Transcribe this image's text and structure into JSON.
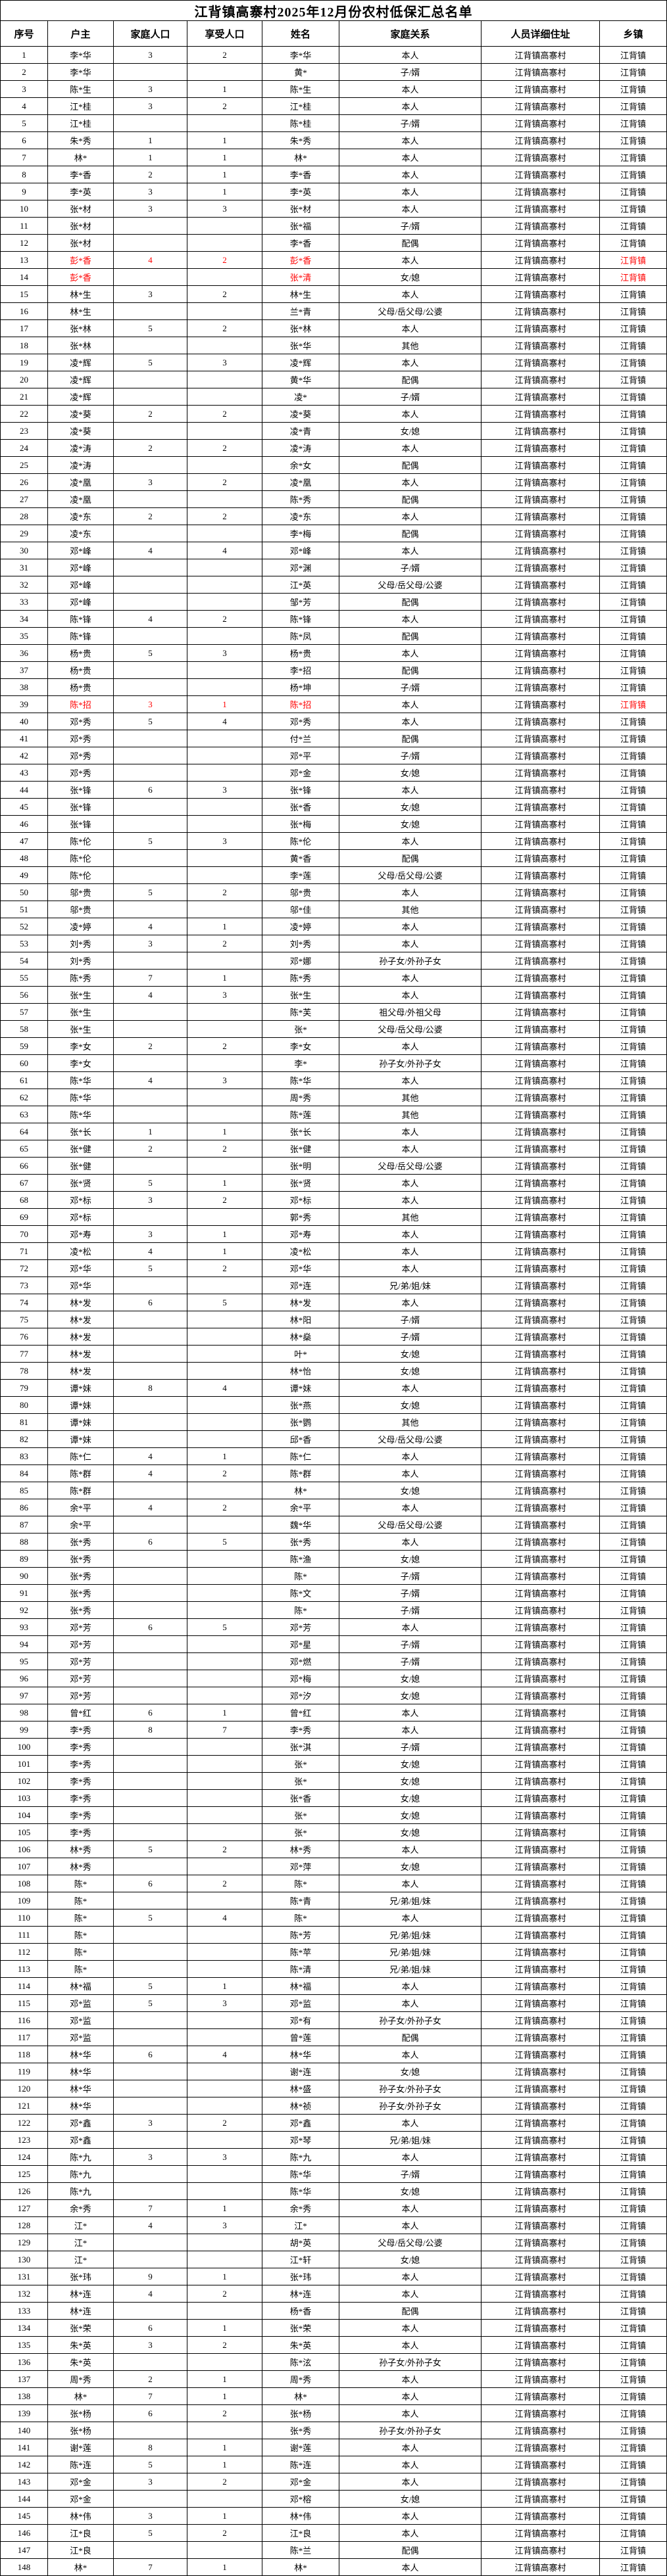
{
  "title": "江背镇高寨村2025年12月份农村低保汇总名单",
  "columns": [
    "序号",
    "户主",
    "家庭人口",
    "享受人口",
    "姓名",
    "家庭关系",
    "人员详细住址",
    "乡镇"
  ],
  "column_keys": [
    "index",
    "householder",
    "family-size",
    "beneficiary-count",
    "name",
    "relation",
    "address",
    "township"
  ],
  "colors": {
    "text": "#000000",
    "border": "#000000",
    "background": "#FFFFFF",
    "highlight": "#FF0000"
  },
  "highlight": {
    "rows": [
      13,
      14,
      39
    ],
    "columns": [
      1,
      2,
      3,
      4,
      7
    ]
  },
  "rows": [
    [
      "1",
      "李*华",
      "3",
      "2",
      "李*华",
      "本人",
      "江背镇高寨村",
      "江背镇"
    ],
    [
      "2",
      "李*华",
      "",
      "",
      "黄*",
      "子/婿",
      "江背镇高寨村",
      "江背镇"
    ],
    [
      "3",
      "陈*生",
      "3",
      "1",
      "陈*生",
      "本人",
      "江背镇高寨村",
      "江背镇"
    ],
    [
      "4",
      "江*桂",
      "3",
      "2",
      "江*桂",
      "本人",
      "江背镇高寨村",
      "江背镇"
    ],
    [
      "5",
      "江*桂",
      "",
      "",
      "陈*桂",
      "子/婿",
      "江背镇高寨村",
      "江背镇"
    ],
    [
      "6",
      "朱*秀",
      "1",
      "1",
      "朱*秀",
      "本人",
      "江背镇高寨村",
      "江背镇"
    ],
    [
      "7",
      "林*",
      "1",
      "1",
      "林*",
      "本人",
      "江背镇高寨村",
      "江背镇"
    ],
    [
      "8",
      "李*香",
      "2",
      "1",
      "李*香",
      "本人",
      "江背镇高寨村",
      "江背镇"
    ],
    [
      "9",
      "李*英",
      "3",
      "1",
      "李*英",
      "本人",
      "江背镇高寨村",
      "江背镇"
    ],
    [
      "10",
      "张*材",
      "3",
      "3",
      "张*材",
      "本人",
      "江背镇高寨村",
      "江背镇"
    ],
    [
      "11",
      "张*材",
      "",
      "",
      "张*福",
      "子/婿",
      "江背镇高寨村",
      "江背镇"
    ],
    [
      "12",
      "张*材",
      "",
      "",
      "李*香",
      "配偶",
      "江背镇高寨村",
      "江背镇"
    ],
    [
      "13",
      "彭*香",
      "4",
      "2",
      "彭*香",
      "本人",
      "江背镇高寨村",
      "江背镇"
    ],
    [
      "14",
      "彭*香",
      "",
      "",
      "张*清",
      "女/媳",
      "江背镇高寨村",
      "江背镇"
    ],
    [
      "15",
      "林*生",
      "3",
      "2",
      "林*生",
      "本人",
      "江背镇高寨村",
      "江背镇"
    ],
    [
      "16",
      "林*生",
      "",
      "",
      "兰*青",
      "父母/岳父母/公婆",
      "江背镇高寨村",
      "江背镇"
    ],
    [
      "17",
      "张*林",
      "5",
      "2",
      "张*林",
      "本人",
      "江背镇高寨村",
      "江背镇"
    ],
    [
      "18",
      "张*林",
      "",
      "",
      "张*华",
      "其他",
      "江背镇高寨村",
      "江背镇"
    ],
    [
      "19",
      "凌*辉",
      "5",
      "3",
      "凌*辉",
      "本人",
      "江背镇高寨村",
      "江背镇"
    ],
    [
      "20",
      "凌*辉",
      "",
      "",
      "黄*华",
      "配偶",
      "江背镇高寨村",
      "江背镇"
    ],
    [
      "21",
      "凌*辉",
      "",
      "",
      "凌*",
      "子/婿",
      "江背镇高寨村",
      "江背镇"
    ],
    [
      "22",
      "凌*葵",
      "2",
      "2",
      "凌*葵",
      "本人",
      "江背镇高寨村",
      "江背镇"
    ],
    [
      "23",
      "凌*葵",
      "",
      "",
      "凌*青",
      "女/媳",
      "江背镇高寨村",
      "江背镇"
    ],
    [
      "24",
      "凌*涛",
      "2",
      "2",
      "凌*涛",
      "本人",
      "江背镇高寨村",
      "江背镇"
    ],
    [
      "25",
      "凌*涛",
      "",
      "",
      "余*女",
      "配偶",
      "江背镇高寨村",
      "江背镇"
    ],
    [
      "26",
      "凌*凰",
      "3",
      "2",
      "凌*凰",
      "本人",
      "江背镇高寨村",
      "江背镇"
    ],
    [
      "27",
      "凌*凰",
      "",
      "",
      "陈*秀",
      "配偶",
      "江背镇高寨村",
      "江背镇"
    ],
    [
      "28",
      "凌*东",
      "2",
      "2",
      "凌*东",
      "本人",
      "江背镇高寨村",
      "江背镇"
    ],
    [
      "29",
      "凌*东",
      "",
      "",
      "李*梅",
      "配偶",
      "江背镇高寨村",
      "江背镇"
    ],
    [
      "30",
      "邓*峰",
      "4",
      "4",
      "邓*峰",
      "本人",
      "江背镇高寨村",
      "江背镇"
    ],
    [
      "31",
      "邓*峰",
      "",
      "",
      "邓*渊",
      "子/婿",
      "江背镇高寨村",
      "江背镇"
    ],
    [
      "32",
      "邓*峰",
      "",
      "",
      "江*英",
      "父母/岳父母/公婆",
      "江背镇高寨村",
      "江背镇"
    ],
    [
      "33",
      "邓*峰",
      "",
      "",
      "邹*芳",
      "配偶",
      "江背镇高寨村",
      "江背镇"
    ],
    [
      "34",
      "陈*锋",
      "4",
      "2",
      "陈*锋",
      "本人",
      "江背镇高寨村",
      "江背镇"
    ],
    [
      "35",
      "陈*锋",
      "",
      "",
      "陈*凤",
      "配偶",
      "江背镇高寨村",
      "江背镇"
    ],
    [
      "36",
      "杨*贵",
      "5",
      "3",
      "杨*贵",
      "本人",
      "江背镇高寨村",
      "江背镇"
    ],
    [
      "37",
      "杨*贵",
      "",
      "",
      "李*招",
      "配偶",
      "江背镇高寨村",
      "江背镇"
    ],
    [
      "38",
      "杨*贵",
      "",
      "",
      "杨*坤",
      "子/婿",
      "江背镇高寨村",
      "江背镇"
    ],
    [
      "39",
      "陈*招",
      "3",
      "1",
      "陈*招",
      "本人",
      "江背镇高寨村",
      "江背镇"
    ],
    [
      "40",
      "邓*秀",
      "5",
      "4",
      "邓*秀",
      "本人",
      "江背镇高寨村",
      "江背镇"
    ],
    [
      "41",
      "邓*秀",
      "",
      "",
      "付*兰",
      "配偶",
      "江背镇高寨村",
      "江背镇"
    ],
    [
      "42",
      "邓*秀",
      "",
      "",
      "邓*平",
      "子/婿",
      "江背镇高寨村",
      "江背镇"
    ],
    [
      "43",
      "邓*秀",
      "",
      "",
      "邓*金",
      "女/媳",
      "江背镇高寨村",
      "江背镇"
    ],
    [
      "44",
      "张*锋",
      "6",
      "3",
      "张*锋",
      "本人",
      "江背镇高寨村",
      "江背镇"
    ],
    [
      "45",
      "张*锋",
      "",
      "",
      "张*香",
      "女/媳",
      "江背镇高寨村",
      "江背镇"
    ],
    [
      "46",
      "张*锋",
      "",
      "",
      "张*梅",
      "女/媳",
      "江背镇高寨村",
      "江背镇"
    ],
    [
      "47",
      "陈*伦",
      "5",
      "3",
      "陈*伦",
      "本人",
      "江背镇高寨村",
      "江背镇"
    ],
    [
      "48",
      "陈*伦",
      "",
      "",
      "黄*香",
      "配偶",
      "江背镇高寨村",
      "江背镇"
    ],
    [
      "49",
      "陈*伦",
      "",
      "",
      "李*莲",
      "父母/岳父母/公婆",
      "江背镇高寨村",
      "江背镇"
    ],
    [
      "50",
      "邬*贵",
      "5",
      "2",
      "邬*贵",
      "本人",
      "江背镇高寨村",
      "江背镇"
    ],
    [
      "51",
      "邬*贵",
      "",
      "",
      "邬*佳",
      "其他",
      "江背镇高寨村",
      "江背镇"
    ],
    [
      "52",
      "凌*婷",
      "4",
      "1",
      "凌*婷",
      "本人",
      "江背镇高寨村",
      "江背镇"
    ],
    [
      "53",
      "刘*秀",
      "3",
      "2",
      "刘*秀",
      "本人",
      "江背镇高寨村",
      "江背镇"
    ],
    [
      "54",
      "刘*秀",
      "",
      "",
      "邓*娜",
      "孙子女/外孙子女",
      "江背镇高寨村",
      "江背镇"
    ],
    [
      "55",
      "陈*秀",
      "7",
      "1",
      "陈*秀",
      "本人",
      "江背镇高寨村",
      "江背镇"
    ],
    [
      "56",
      "张*生",
      "4",
      "3",
      "张*生",
      "本人",
      "江背镇高寨村",
      "江背镇"
    ],
    [
      "57",
      "张*生",
      "",
      "",
      "陈*芙",
      "祖父母/外祖父母",
      "江背镇高寨村",
      "江背镇"
    ],
    [
      "58",
      "张*生",
      "",
      "",
      "张*",
      "父母/岳父母/公婆",
      "江背镇高寨村",
      "江背镇"
    ],
    [
      "59",
      "李*女",
      "2",
      "2",
      "李*女",
      "本人",
      "江背镇高寨村",
      "江背镇"
    ],
    [
      "60",
      "李*女",
      "",
      "",
      "李*",
      "孙子女/外孙子女",
      "江背镇高寨村",
      "江背镇"
    ],
    [
      "61",
      "陈*华",
      "4",
      "3",
      "陈*华",
      "本人",
      "江背镇高寨村",
      "江背镇"
    ],
    [
      "62",
      "陈*华",
      "",
      "",
      "周*秀",
      "其他",
      "江背镇高寨村",
      "江背镇"
    ],
    [
      "63",
      "陈*华",
      "",
      "",
      "陈*莲",
      "其他",
      "江背镇高寨村",
      "江背镇"
    ],
    [
      "64",
      "张*长",
      "1",
      "1",
      "张*长",
      "本人",
      "江背镇高寨村",
      "江背镇"
    ],
    [
      "65",
      "张*健",
      "2",
      "2",
      "张*健",
      "本人",
      "江背镇高寨村",
      "江背镇"
    ],
    [
      "66",
      "张*健",
      "",
      "",
      "张*明",
      "父母/岳父母/公婆",
      "江背镇高寨村",
      "江背镇"
    ],
    [
      "67",
      "张*贤",
      "5",
      "1",
      "张*贤",
      "本人",
      "江背镇高寨村",
      "江背镇"
    ],
    [
      "68",
      "邓*标",
      "3",
      "2",
      "邓*标",
      "本人",
      "江背镇高寨村",
      "江背镇"
    ],
    [
      "69",
      "邓*标",
      "",
      "",
      "郭*秀",
      "其他",
      "江背镇高寨村",
      "江背镇"
    ],
    [
      "70",
      "邓*寿",
      "3",
      "1",
      "邓*寿",
      "本人",
      "江背镇高寨村",
      "江背镇"
    ],
    [
      "71",
      "凌*松",
      "4",
      "1",
      "凌*松",
      "本人",
      "江背镇高寨村",
      "江背镇"
    ],
    [
      "72",
      "邓*华",
      "5",
      "2",
      "邓*华",
      "本人",
      "江背镇高寨村",
      "江背镇"
    ],
    [
      "73",
      "邓*华",
      "",
      "",
      "邓*连",
      "兄/弟/姐/妹",
      "江背镇高寨村",
      "江背镇"
    ],
    [
      "74",
      "林*发",
      "6",
      "5",
      "林*发",
      "本人",
      "江背镇高寨村",
      "江背镇"
    ],
    [
      "75",
      "林*发",
      "",
      "",
      "林*阳",
      "子/婿",
      "江背镇高寨村",
      "江背镇"
    ],
    [
      "76",
      "林*发",
      "",
      "",
      "林*燊",
      "子/婿",
      "江背镇高寨村",
      "江背镇"
    ],
    [
      "77",
      "林*发",
      "",
      "",
      "叶*",
      "女/媳",
      "江背镇高寨村",
      "江背镇"
    ],
    [
      "78",
      "林*发",
      "",
      "",
      "林*怡",
      "女/媳",
      "江背镇高寨村",
      "江背镇"
    ],
    [
      "79",
      "谭*妹",
      "8",
      "4",
      "谭*妹",
      "本人",
      "江背镇高寨村",
      "江背镇"
    ],
    [
      "80",
      "谭*妹",
      "",
      "",
      "张*燕",
      "女/媳",
      "江背镇高寨村",
      "江背镇"
    ],
    [
      "81",
      "谭*妹",
      "",
      "",
      "张*鹦",
      "其他",
      "江背镇高寨村",
      "江背镇"
    ],
    [
      "82",
      "谭*妹",
      "",
      "",
      "邱*香",
      "父母/岳父母/公婆",
      "江背镇高寨村",
      "江背镇"
    ],
    [
      "83",
      "陈*仁",
      "4",
      "1",
      "陈*仁",
      "本人",
      "江背镇高寨村",
      "江背镇"
    ],
    [
      "84",
      "陈*群",
      "4",
      "2",
      "陈*群",
      "本人",
      "江背镇高寨村",
      "江背镇"
    ],
    [
      "85",
      "陈*群",
      "",
      "",
      "林*",
      "女/媳",
      "江背镇高寨村",
      "江背镇"
    ],
    [
      "86",
      "余*平",
      "4",
      "2",
      "余*平",
      "本人",
      "江背镇高寨村",
      "江背镇"
    ],
    [
      "87",
      "余*平",
      "",
      "",
      "魏*华",
      "父母/岳父母/公婆",
      "江背镇高寨村",
      "江背镇"
    ],
    [
      "88",
      "张*秀",
      "6",
      "5",
      "张*秀",
      "本人",
      "江背镇高寨村",
      "江背镇"
    ],
    [
      "89",
      "张*秀",
      "",
      "",
      "陈*渔",
      "女/媳",
      "江背镇高寨村",
      "江背镇"
    ],
    [
      "90",
      "张*秀",
      "",
      "",
      "陈*",
      "子/婿",
      "江背镇高寨村",
      "江背镇"
    ],
    [
      "91",
      "张*秀",
      "",
      "",
      "陈*文",
      "子/婿",
      "江背镇高寨村",
      "江背镇"
    ],
    [
      "92",
      "张*秀",
      "",
      "",
      "陈*",
      "子/婿",
      "江背镇高寨村",
      "江背镇"
    ],
    [
      "93",
      "邓*芳",
      "6",
      "5",
      "邓*芳",
      "本人",
      "江背镇高寨村",
      "江背镇"
    ],
    [
      "94",
      "邓*芳",
      "",
      "",
      "邓*星",
      "子/婿",
      "江背镇高寨村",
      "江背镇"
    ],
    [
      "95",
      "邓*芳",
      "",
      "",
      "邓*燃",
      "子/婿",
      "江背镇高寨村",
      "江背镇"
    ],
    [
      "96",
      "邓*芳",
      "",
      "",
      "邓*梅",
      "女/媳",
      "江背镇高寨村",
      "江背镇"
    ],
    [
      "97",
      "邓*芳",
      "",
      "",
      "邓*汐",
      "女/媳",
      "江背镇高寨村",
      "江背镇"
    ],
    [
      "98",
      "曾*红",
      "6",
      "1",
      "曾*红",
      "本人",
      "江背镇高寨村",
      "江背镇"
    ],
    [
      "99",
      "李*秀",
      "8",
      "7",
      "李*秀",
      "本人",
      "江背镇高寨村",
      "江背镇"
    ],
    [
      "100",
      "李*秀",
      "",
      "",
      "张*淇",
      "子/婿",
      "江背镇高寨村",
      "江背镇"
    ],
    [
      "101",
      "李*秀",
      "",
      "",
      "张*",
      "女/媳",
      "江背镇高寨村",
      "江背镇"
    ],
    [
      "102",
      "李*秀",
      "",
      "",
      "张*",
      "女/媳",
      "江背镇高寨村",
      "江背镇"
    ],
    [
      "103",
      "李*秀",
      "",
      "",
      "张*香",
      "女/媳",
      "江背镇高寨村",
      "江背镇"
    ],
    [
      "104",
      "李*秀",
      "",
      "",
      "张*",
      "女/媳",
      "江背镇高寨村",
      "江背镇"
    ],
    [
      "105",
      "李*秀",
      "",
      "",
      "张*",
      "女/媳",
      "江背镇高寨村",
      "江背镇"
    ],
    [
      "106",
      "林*秀",
      "5",
      "2",
      "林*秀",
      "本人",
      "江背镇高寨村",
      "江背镇"
    ],
    [
      "107",
      "林*秀",
      "",
      "",
      "邓*萍",
      "女/媳",
      "江背镇高寨村",
      "江背镇"
    ],
    [
      "108",
      "陈*",
      "6",
      "2",
      "陈*",
      "本人",
      "江背镇高寨村",
      "江背镇"
    ],
    [
      "109",
      "陈*",
      "",
      "",
      "陈*青",
      "兄/弟/姐/妹",
      "江背镇高寨村",
      "江背镇"
    ],
    [
      "110",
      "陈*",
      "5",
      "4",
      "陈*",
      "本人",
      "江背镇高寨村",
      "江背镇"
    ],
    [
      "111",
      "陈*",
      "",
      "",
      "陈*芳",
      "兄/弟/姐/妹",
      "江背镇高寨村",
      "江背镇"
    ],
    [
      "112",
      "陈*",
      "",
      "",
      "陈*苹",
      "兄/弟/姐/妹",
      "江背镇高寨村",
      "江背镇"
    ],
    [
      "113",
      "陈*",
      "",
      "",
      "陈*清",
      "兄/弟/姐/妹",
      "江背镇高寨村",
      "江背镇"
    ],
    [
      "114",
      "林*福",
      "5",
      "1",
      "林*福",
      "本人",
      "江背镇高寨村",
      "江背镇"
    ],
    [
      "115",
      "邓*监",
      "5",
      "3",
      "邓*监",
      "本人",
      "江背镇高寨村",
      "江背镇"
    ],
    [
      "116",
      "邓*监",
      "",
      "",
      "邓*有",
      "孙子女/外孙子女",
      "江背镇高寨村",
      "江背镇"
    ],
    [
      "117",
      "邓*监",
      "",
      "",
      "曾*莲",
      "配偶",
      "江背镇高寨村",
      "江背镇"
    ],
    [
      "118",
      "林*华",
      "6",
      "4",
      "林*华",
      "本人",
      "江背镇高寨村",
      "江背镇"
    ],
    [
      "119",
      "林*华",
      "",
      "",
      "谢*连",
      "女/媳",
      "江背镇高寨村",
      "江背镇"
    ],
    [
      "120",
      "林*华",
      "",
      "",
      "林*盛",
      "孙子女/外孙子女",
      "江背镇高寨村",
      "江背镇"
    ],
    [
      "121",
      "林*华",
      "",
      "",
      "林*祯",
      "孙子女/外孙子女",
      "江背镇高寨村",
      "江背镇"
    ],
    [
      "122",
      "邓*鑫",
      "3",
      "2",
      "邓*鑫",
      "本人",
      "江背镇高寨村",
      "江背镇"
    ],
    [
      "123",
      "邓*鑫",
      "",
      "",
      "邓*琴",
      "兄/弟/姐/妹",
      "江背镇高寨村",
      "江背镇"
    ],
    [
      "124",
      "陈*九",
      "3",
      "3",
      "陈*九",
      "本人",
      "江背镇高寨村",
      "江背镇"
    ],
    [
      "125",
      "陈*九",
      "",
      "",
      "陈*华",
      "子/婿",
      "江背镇高寨村",
      "江背镇"
    ],
    [
      "126",
      "陈*九",
      "",
      "",
      "陈*华",
      "女/媳",
      "江背镇高寨村",
      "江背镇"
    ],
    [
      "127",
      "余*秀",
      "7",
      "1",
      "余*秀",
      "本人",
      "江背镇高寨村",
      "江背镇"
    ],
    [
      "128",
      "江*",
      "4",
      "3",
      "江*",
      "本人",
      "江背镇高寨村",
      "江背镇"
    ],
    [
      "129",
      "江*",
      "",
      "",
      "胡*英",
      "父母/岳父母/公婆",
      "江背镇高寨村",
      "江背镇"
    ],
    [
      "130",
      "江*",
      "",
      "",
      "江*轩",
      "女/媳",
      "江背镇高寨村",
      "江背镇"
    ],
    [
      "131",
      "张*玮",
      "9",
      "1",
      "张*玮",
      "本人",
      "江背镇高寨村",
      "江背镇"
    ],
    [
      "132",
      "林*连",
      "4",
      "2",
      "林*连",
      "本人",
      "江背镇高寨村",
      "江背镇"
    ],
    [
      "133",
      "林*连",
      "",
      "",
      "杨*香",
      "配偶",
      "江背镇高寨村",
      "江背镇"
    ],
    [
      "134",
      "张*荣",
      "6",
      "1",
      "张*荣",
      "本人",
      "江背镇高寨村",
      "江背镇"
    ],
    [
      "135",
      "朱*英",
      "3",
      "2",
      "朱*英",
      "本人",
      "江背镇高寨村",
      "江背镇"
    ],
    [
      "136",
      "朱*英",
      "",
      "",
      "陈*泫",
      "孙子女/外孙子女",
      "江背镇高寨村",
      "江背镇"
    ],
    [
      "137",
      "周*秀",
      "2",
      "1",
      "周*秀",
      "本人",
      "江背镇高寨村",
      "江背镇"
    ],
    [
      "138",
      "林*",
      "7",
      "1",
      "林*",
      "本人",
      "江背镇高寨村",
      "江背镇"
    ],
    [
      "139",
      "张*杨",
      "6",
      "2",
      "张*杨",
      "本人",
      "江背镇高寨村",
      "江背镇"
    ],
    [
      "140",
      "张*杨",
      "",
      "",
      "张*秀",
      "孙子女/外孙子女",
      "江背镇高寨村",
      "江背镇"
    ],
    [
      "141",
      "谢*莲",
      "8",
      "1",
      "谢*莲",
      "本人",
      "江背镇高寨村",
      "江背镇"
    ],
    [
      "142",
      "陈*连",
      "5",
      "1",
      "陈*连",
      "本人",
      "江背镇高寨村",
      "江背镇"
    ],
    [
      "143",
      "邓*金",
      "3",
      "2",
      "邓*金",
      "本人",
      "江背镇高寨村",
      "江背镇"
    ],
    [
      "144",
      "邓*金",
      "",
      "",
      "邓*榕",
      "女/媳",
      "江背镇高寨村",
      "江背镇"
    ],
    [
      "145",
      "林*伟",
      "3",
      "1",
      "林*伟",
      "本人",
      "江背镇高寨村",
      "江背镇"
    ],
    [
      "146",
      "江*良",
      "5",
      "2",
      "江*良",
      "本人",
      "江背镇高寨村",
      "江背镇"
    ],
    [
      "147",
      "江*良",
      "",
      "",
      "陈*兰",
      "配偶",
      "江背镇高寨村",
      "江背镇"
    ],
    [
      "148",
      "林*",
      "7",
      "1",
      "林*",
      "本人",
      "江背镇高寨村",
      "江背镇"
    ]
  ]
}
